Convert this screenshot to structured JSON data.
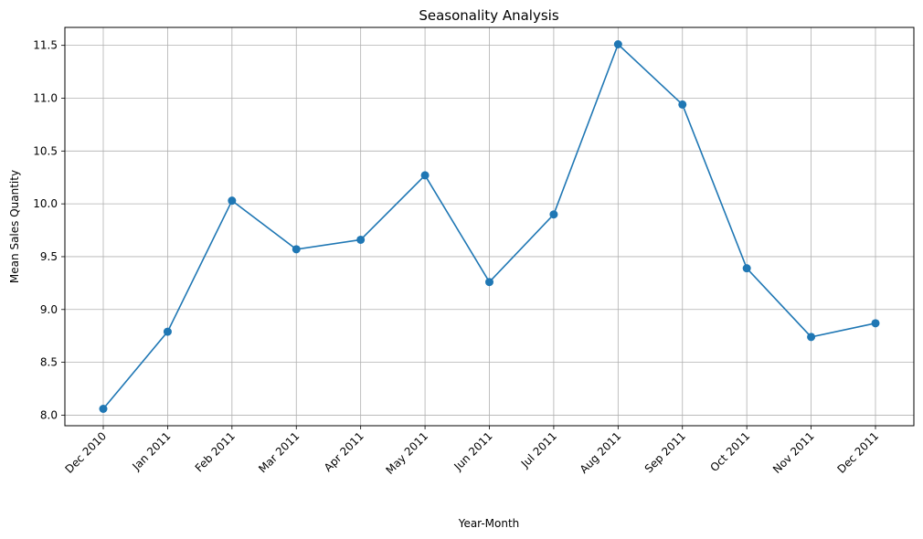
{
  "chart_data": {
    "type": "line",
    "title": "Seasonality Analysis",
    "xlabel": "Year-Month",
    "ylabel": "Mean Sales Quantity",
    "categories": [
      "Dec 2010",
      "Jan 2011",
      "Feb 2011",
      "Mar 2011",
      "Apr 2011",
      "May 2011",
      "Jun 2011",
      "Jul 2011",
      "Aug 2011",
      "Sep 2011",
      "Oct 2011",
      "Nov 2011",
      "Dec 2011"
    ],
    "series": [
      {
        "values": [
          8.06,
          8.79,
          10.03,
          9.57,
          9.66,
          10.27,
          9.26,
          9.9,
          11.51,
          10.94,
          9.39,
          8.74,
          8.87
        ],
        "color": "#1f77b4",
        "marker": "circle"
      }
    ],
    "ylim": [
      7.9,
      11.67
    ],
    "yticks": [
      "8.0",
      "8.5",
      "9.0",
      "9.5",
      "10.0",
      "10.5",
      "11.0",
      "11.5"
    ],
    "grid": true
  }
}
